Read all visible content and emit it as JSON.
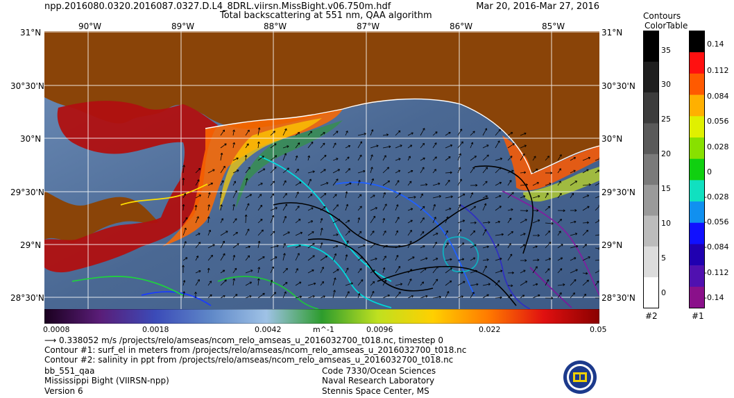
{
  "header": {
    "file_name": "npp.2016080.0320.2016087.0327.D.L4_8DRL.viirsn.MissBight.v06.750m.hdf",
    "subtitle": "Total backscattering at 551 nm, QAA algorithm",
    "date_range": "Mar 20, 2016-Mar 27, 2016",
    "contours_title_1": "Contours",
    "contours_title_2": "ColorTable"
  },
  "map": {
    "longitude_labels": [
      "90°W",
      "89°W",
      "88°W",
      "87°W",
      "86°W",
      "85°W"
    ],
    "latitude_labels": [
      "31°N",
      "30°30'N",
      "30°N",
      "29°30'N",
      "29°N",
      "28°30'N"
    ],
    "land_color": "#8a4408",
    "water_color": "#4f6e9c"
  },
  "colorbar": {
    "unit": "m^-1",
    "tick_labels": [
      "0.0008",
      "0.0018",
      "0.0042",
      "0.0096",
      "0.022",
      "0.05"
    ],
    "stops": [
      "#1a001f",
      "#5a1d78",
      "#3b4bb8",
      "#5f88c8",
      "#9fc2e6",
      "#2d9c2d",
      "#bfe020",
      "#ffd000",
      "#ff7a00",
      "#e01010",
      "#8a0000"
    ]
  },
  "panel2": {
    "label": "#2",
    "tick_labels": [
      "35",
      "30",
      "25",
      "20",
      "15",
      "10",
      "5",
      "0"
    ],
    "colors": [
      "#000000",
      "#1e1e1e",
      "#3c3c3c",
      "#5a5a5a",
      "#7a7a7a",
      "#9a9a9a",
      "#bcbcbc",
      "#dcdcdc",
      "#ffffff"
    ]
  },
  "panel1": {
    "label": "#1",
    "tick_labels": [
      "0.14",
      "0.112",
      "0.084",
      "0.056",
      "0.028",
      "0",
      "-0.028",
      "-0.056",
      "-0.084",
      "-0.112",
      "-0.14"
    ],
    "colors": [
      "#000000",
      "#ff1010",
      "#ff5a00",
      "#ffb000",
      "#e0f000",
      "#88e000",
      "#10d010",
      "#10e0c0",
      "#1090f0",
      "#1010ff",
      "#2000b0",
      "#5010b0",
      "#8a108a"
    ]
  },
  "footer": {
    "vector_legend": "0.338052 m/s /projects/relo/amseas/ncom_relo_amseas_u_2016032700_t018.nc, timestep 0",
    "contour1": "Contour #1: surf_el in meters from /projects/relo/amseas/ncom_relo_amseas_u_2016032700_t018.nc",
    "contour2": "Contour #2: salinity in ppt from /projects/relo/amseas/ncom_relo_amseas_u_2016032700_t018.nc",
    "product": "bb_551_qaa",
    "region": "Mississippi Bight (VIIRSN-npp)",
    "version": "Version 6",
    "org_code": "Code 7330/Ocean Sciences",
    "org_name": "Naval Research Laboratory",
    "org_place": "Stennis Space Center, MS"
  }
}
